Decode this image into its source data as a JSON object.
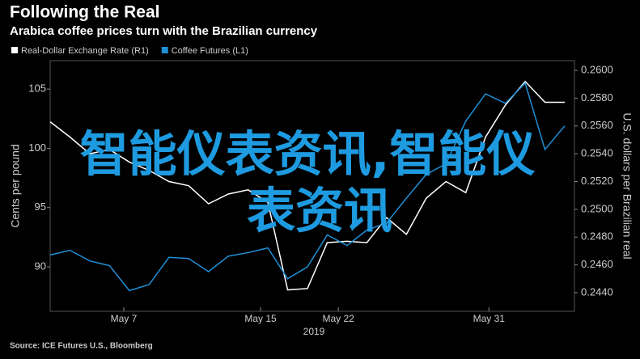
{
  "chart_data": {
    "type": "line",
    "title": "Following the Real",
    "subtitle": "Arabica coffee prices turn with the Brazilian currency",
    "source": "Source: ICE Futures U.S., Bloomberg",
    "x_label": "2019",
    "y_label": "Cents per pound",
    "y2_label": "U.S. dollars per Brazilian real",
    "categories": [
      null,
      null,
      null,
      null,
      null,
      null,
      null,
      null,
      null,
      null,
      null,
      null,
      null,
      null,
      null,
      null,
      null,
      null,
      null,
      null,
      null,
      null,
      null,
      null,
      null,
      null,
      null
    ],
    "xticks": [
      {
        "value": 3.72,
        "label": "May 7"
      },
      {
        "value": 10.63,
        "label": "May 15"
      },
      {
        "value": 14.56,
        "label": "May 22"
      },
      {
        "value": 22.17,
        "label": "May 31"
      }
    ],
    "ylim": [
      86.25,
      107.4
    ],
    "yticks": [
      90,
      95,
      100,
      105
    ],
    "y2lim": [
      0.24266,
      0.2607
    ],
    "y2ticks": [
      {
        "value": 0.244,
        "label": "0.2440"
      },
      {
        "value": 0.246,
        "label": "0.2460"
      },
      {
        "value": 0.248,
        "label": "0.2480"
      },
      {
        "value": 0.25,
        "label": "0.2500"
      },
      {
        "value": 0.252,
        "label": "0.2520"
      },
      {
        "value": 0.254,
        "label": "0.2540"
      },
      {
        "value": 0.256,
        "label": "0.2560"
      },
      {
        "value": 0.258,
        "label": "0.2580"
      },
      {
        "value": 0.26,
        "label": "0.2600"
      }
    ],
    "series": [
      {
        "name": "Real-Dollar Exchange Rate (R1)",
        "color": "#ffffff",
        "axis": "y2",
        "values": [
          0.2563,
          0.2552,
          0.254,
          0.2543,
          0.2534,
          0.2528,
          0.252,
          0.2517,
          0.2504,
          0.2511,
          0.2514,
          0.2505,
          0.2442,
          0.2443,
          0.2476,
          0.2477,
          0.2476,
          0.2494,
          0.2482,
          0.2508,
          0.252,
          0.2512,
          0.2552,
          0.2575,
          0.2592,
          0.2577,
          0.2577
        ]
      },
      {
        "name": "Coffee Futures (L1)",
        "color": "#1f8fd6",
        "values": [
          91.0,
          91.4,
          90.5,
          90.1,
          88.0,
          88.5,
          90.8,
          90.7,
          89.6,
          90.9,
          91.2,
          91.6,
          89.0,
          90.0,
          92.7,
          91.8,
          93.1,
          93.7,
          95.8,
          97.8,
          98.7,
          102.3,
          104.6,
          103.8,
          105.5,
          99.9,
          101.9
        ]
      }
    ]
  },
  "watermark": [
    "智能仪表资讯,智能仪",
    "表资讯"
  ]
}
